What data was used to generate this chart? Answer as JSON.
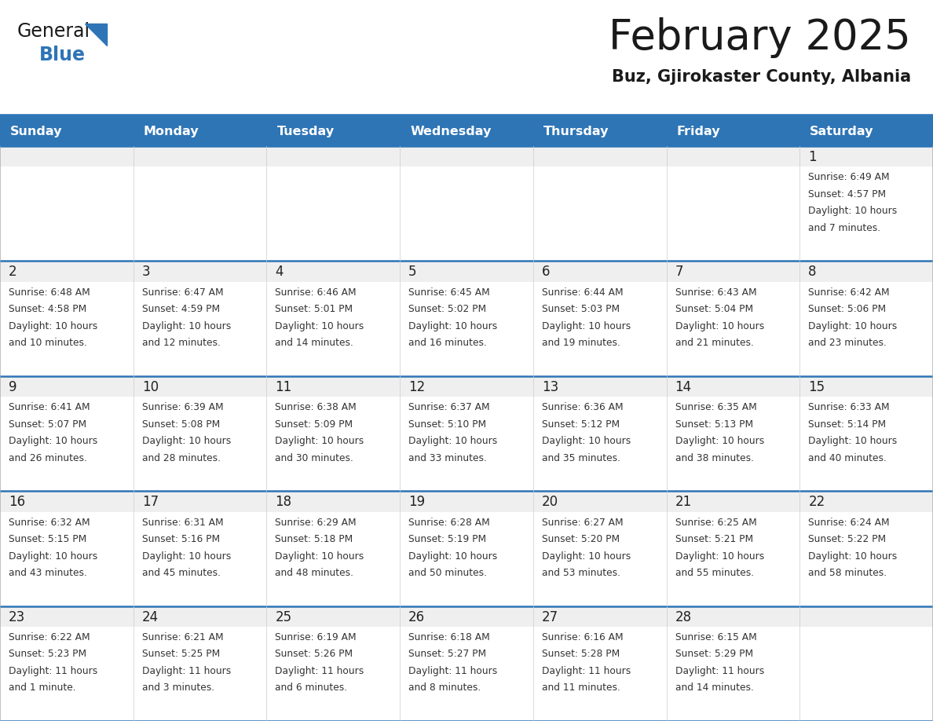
{
  "title": "February 2025",
  "subtitle": "Buz, Gjirokaster County, Albania",
  "days_of_week": [
    "Sunday",
    "Monday",
    "Tuesday",
    "Wednesday",
    "Thursday",
    "Friday",
    "Saturday"
  ],
  "header_bg": "#2E75B6",
  "header_text": "#FFFFFF",
  "cell_bg_white": "#FFFFFF",
  "cell_bg_gray": "#EFEFEF",
  "separator_color": "#2E75B6",
  "day_num_color": "#222222",
  "cell_text_color": "#333333",
  "title_color": "#1a1a1a",
  "subtitle_color": "#1a1a1a",
  "logo_black": "#1a1a1a",
  "logo_blue": "#2E75B6",
  "weeks": [
    {
      "days": [
        {
          "day": null,
          "info": null
        },
        {
          "day": null,
          "info": null
        },
        {
          "day": null,
          "info": null
        },
        {
          "day": null,
          "info": null
        },
        {
          "day": null,
          "info": null
        },
        {
          "day": null,
          "info": null
        },
        {
          "day": 1,
          "info": "Sunrise: 6:49 AM\nSunset: 4:57 PM\nDaylight: 10 hours\nand 7 minutes."
        }
      ]
    },
    {
      "days": [
        {
          "day": 2,
          "info": "Sunrise: 6:48 AM\nSunset: 4:58 PM\nDaylight: 10 hours\nand 10 minutes."
        },
        {
          "day": 3,
          "info": "Sunrise: 6:47 AM\nSunset: 4:59 PM\nDaylight: 10 hours\nand 12 minutes."
        },
        {
          "day": 4,
          "info": "Sunrise: 6:46 AM\nSunset: 5:01 PM\nDaylight: 10 hours\nand 14 minutes."
        },
        {
          "day": 5,
          "info": "Sunrise: 6:45 AM\nSunset: 5:02 PM\nDaylight: 10 hours\nand 16 minutes."
        },
        {
          "day": 6,
          "info": "Sunrise: 6:44 AM\nSunset: 5:03 PM\nDaylight: 10 hours\nand 19 minutes."
        },
        {
          "day": 7,
          "info": "Sunrise: 6:43 AM\nSunset: 5:04 PM\nDaylight: 10 hours\nand 21 minutes."
        },
        {
          "day": 8,
          "info": "Sunrise: 6:42 AM\nSunset: 5:06 PM\nDaylight: 10 hours\nand 23 minutes."
        }
      ]
    },
    {
      "days": [
        {
          "day": 9,
          "info": "Sunrise: 6:41 AM\nSunset: 5:07 PM\nDaylight: 10 hours\nand 26 minutes."
        },
        {
          "day": 10,
          "info": "Sunrise: 6:39 AM\nSunset: 5:08 PM\nDaylight: 10 hours\nand 28 minutes."
        },
        {
          "day": 11,
          "info": "Sunrise: 6:38 AM\nSunset: 5:09 PM\nDaylight: 10 hours\nand 30 minutes."
        },
        {
          "day": 12,
          "info": "Sunrise: 6:37 AM\nSunset: 5:10 PM\nDaylight: 10 hours\nand 33 minutes."
        },
        {
          "day": 13,
          "info": "Sunrise: 6:36 AM\nSunset: 5:12 PM\nDaylight: 10 hours\nand 35 minutes."
        },
        {
          "day": 14,
          "info": "Sunrise: 6:35 AM\nSunset: 5:13 PM\nDaylight: 10 hours\nand 38 minutes."
        },
        {
          "day": 15,
          "info": "Sunrise: 6:33 AM\nSunset: 5:14 PM\nDaylight: 10 hours\nand 40 minutes."
        }
      ]
    },
    {
      "days": [
        {
          "day": 16,
          "info": "Sunrise: 6:32 AM\nSunset: 5:15 PM\nDaylight: 10 hours\nand 43 minutes."
        },
        {
          "day": 17,
          "info": "Sunrise: 6:31 AM\nSunset: 5:16 PM\nDaylight: 10 hours\nand 45 minutes."
        },
        {
          "day": 18,
          "info": "Sunrise: 6:29 AM\nSunset: 5:18 PM\nDaylight: 10 hours\nand 48 minutes."
        },
        {
          "day": 19,
          "info": "Sunrise: 6:28 AM\nSunset: 5:19 PM\nDaylight: 10 hours\nand 50 minutes."
        },
        {
          "day": 20,
          "info": "Sunrise: 6:27 AM\nSunset: 5:20 PM\nDaylight: 10 hours\nand 53 minutes."
        },
        {
          "day": 21,
          "info": "Sunrise: 6:25 AM\nSunset: 5:21 PM\nDaylight: 10 hours\nand 55 minutes."
        },
        {
          "day": 22,
          "info": "Sunrise: 6:24 AM\nSunset: 5:22 PM\nDaylight: 10 hours\nand 58 minutes."
        }
      ]
    },
    {
      "days": [
        {
          "day": 23,
          "info": "Sunrise: 6:22 AM\nSunset: 5:23 PM\nDaylight: 11 hours\nand 1 minute."
        },
        {
          "day": 24,
          "info": "Sunrise: 6:21 AM\nSunset: 5:25 PM\nDaylight: 11 hours\nand 3 minutes."
        },
        {
          "day": 25,
          "info": "Sunrise: 6:19 AM\nSunset: 5:26 PM\nDaylight: 11 hours\nand 6 minutes."
        },
        {
          "day": 26,
          "info": "Sunrise: 6:18 AM\nSunset: 5:27 PM\nDaylight: 11 hours\nand 8 minutes."
        },
        {
          "day": 27,
          "info": "Sunrise: 6:16 AM\nSunset: 5:28 PM\nDaylight: 11 hours\nand 11 minutes."
        },
        {
          "day": 28,
          "info": "Sunrise: 6:15 AM\nSunset: 5:29 PM\nDaylight: 11 hours\nand 14 minutes."
        },
        {
          "day": null,
          "info": null
        }
      ]
    }
  ]
}
